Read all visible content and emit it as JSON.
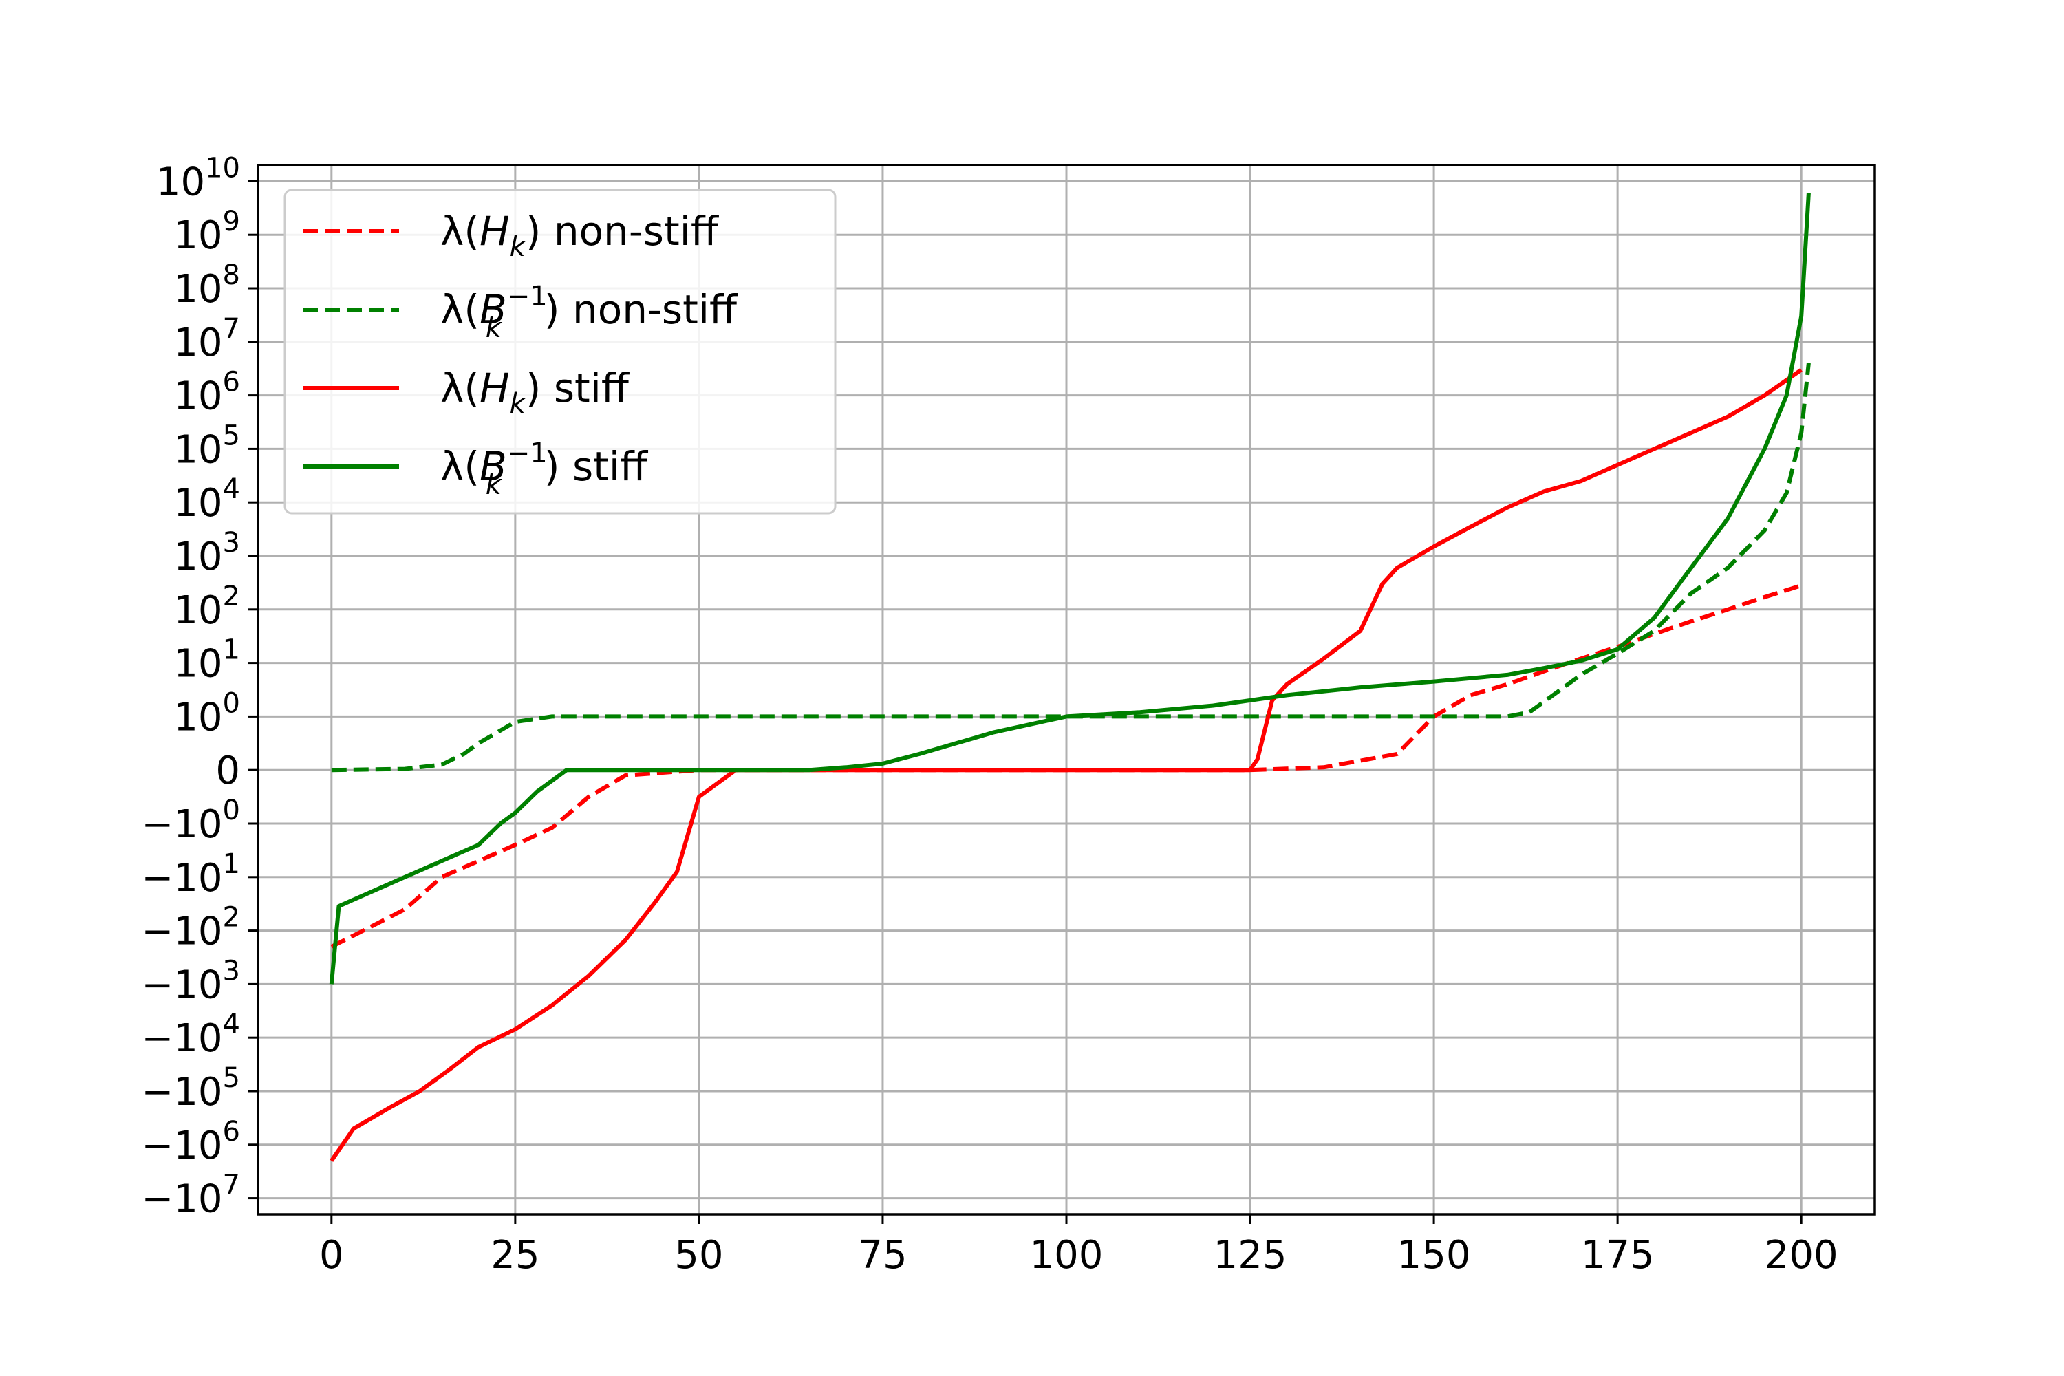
{
  "chart_data": {
    "type": "line",
    "title": "",
    "xlabel": "",
    "ylabel": "",
    "xlim": [
      -10,
      210
    ],
    "yscale": "symlog",
    "ylim": [
      -20000000,
      20000000000
    ],
    "grid": true,
    "legend_position": "top-left",
    "x_ticks": [
      {
        "value": 0,
        "label": "0"
      },
      {
        "value": 25,
        "label": "25"
      },
      {
        "value": 50,
        "label": "50"
      },
      {
        "value": 75,
        "label": "75"
      },
      {
        "value": 100,
        "label": "100"
      },
      {
        "value": 125,
        "label": "125"
      },
      {
        "value": 150,
        "label": "150"
      },
      {
        "value": 175,
        "label": "175"
      },
      {
        "value": 200,
        "label": "200"
      }
    ],
    "y_ticks": [
      {
        "value": 10000000000,
        "base": "10",
        "exp": "10"
      },
      {
        "value": 1000000000,
        "base": "10",
        "exp": "9"
      },
      {
        "value": 100000000,
        "base": "10",
        "exp": "8"
      },
      {
        "value": 10000000,
        "base": "10",
        "exp": "7"
      },
      {
        "value": 1000000,
        "base": "10",
        "exp": "6"
      },
      {
        "value": 100000,
        "base": "10",
        "exp": "5"
      },
      {
        "value": 10000,
        "base": "10",
        "exp": "4"
      },
      {
        "value": 1000,
        "base": "10",
        "exp": "3"
      },
      {
        "value": 100,
        "base": "10",
        "exp": "2"
      },
      {
        "value": 10,
        "base": "10",
        "exp": "1"
      },
      {
        "value": 1,
        "base": "10",
        "exp": "0"
      },
      {
        "value": 0,
        "base": "0",
        "exp": ""
      },
      {
        "value": -1,
        "base": "−10",
        "exp": "0"
      },
      {
        "value": -10,
        "base": "−10",
        "exp": "1"
      },
      {
        "value": -100,
        "base": "−10",
        "exp": "2"
      },
      {
        "value": -1000,
        "base": "−10",
        "exp": "3"
      },
      {
        "value": -10000,
        "base": "−10",
        "exp": "4"
      },
      {
        "value": -100000,
        "base": "−10",
        "exp": "5"
      },
      {
        "value": -1000000,
        "base": "−10",
        "exp": "6"
      },
      {
        "value": -10000000,
        "base": "−10",
        "exp": "7"
      }
    ],
    "series": [
      {
        "name": "λ(H_k) non-stiff",
        "color": "#ff0000",
        "style": "dashed",
        "points": [
          [
            0,
            -200
          ],
          [
            5,
            -90
          ],
          [
            10,
            -40
          ],
          [
            15,
            -10
          ],
          [
            20,
            -5
          ],
          [
            25,
            -2.5
          ],
          [
            30,
            -1.2
          ],
          [
            35,
            -0.5
          ],
          [
            40,
            -0.1
          ],
          [
            50,
            0
          ],
          [
            125,
            0
          ],
          [
            135,
            0.05
          ],
          [
            145,
            0.3
          ],
          [
            150,
            1
          ],
          [
            155,
            2.5
          ],
          [
            160,
            4
          ],
          [
            165,
            7
          ],
          [
            170,
            12
          ],
          [
            175,
            20
          ],
          [
            180,
            35
          ],
          [
            185,
            60
          ],
          [
            190,
            100
          ],
          [
            195,
            170
          ],
          [
            200,
            280
          ]
        ]
      },
      {
        "name": "λ(B_k^{-1}) non-stiff",
        "color": "#008000",
        "style": "dashed",
        "points": [
          [
            0,
            0
          ],
          [
            10,
            0.02
          ],
          [
            15,
            0.1
          ],
          [
            18,
            0.3
          ],
          [
            20,
            0.5
          ],
          [
            25,
            0.9
          ],
          [
            30,
            1
          ],
          [
            160,
            1
          ],
          [
            163,
            1.2
          ],
          [
            167,
            3
          ],
          [
            170,
            6
          ],
          [
            175,
            15
          ],
          [
            180,
            40
          ],
          [
            185,
            200
          ],
          [
            190,
            600
          ],
          [
            195,
            3000
          ],
          [
            198,
            15000
          ],
          [
            200,
            200000
          ],
          [
            201,
            4000000
          ]
        ]
      },
      {
        "name": "λ(H_k) stiff",
        "color": "#ff0000",
        "style": "solid",
        "points": [
          [
            0,
            -2000000
          ],
          [
            3,
            -500000
          ],
          [
            8,
            -200000
          ],
          [
            12,
            -100000
          ],
          [
            16,
            -40000
          ],
          [
            20,
            -15000
          ],
          [
            25,
            -7000
          ],
          [
            30,
            -2500
          ],
          [
            35,
            -700
          ],
          [
            40,
            -150
          ],
          [
            44,
            -30
          ],
          [
            47,
            -8
          ],
          [
            50,
            -0.5
          ],
          [
            55,
            0
          ],
          [
            125,
            0
          ],
          [
            126,
            0.2
          ],
          [
            128,
            2
          ],
          [
            130,
            4
          ],
          [
            135,
            12
          ],
          [
            140,
            40
          ],
          [
            143,
            300
          ],
          [
            145,
            600
          ],
          [
            150,
            1500
          ],
          [
            155,
            3500
          ],
          [
            160,
            8000
          ],
          [
            165,
            16000
          ],
          [
            170,
            25000
          ],
          [
            175,
            50000
          ],
          [
            180,
            100000
          ],
          [
            185,
            200000
          ],
          [
            190,
            400000
          ],
          [
            195,
            1000000
          ],
          [
            200,
            3000000
          ]
        ]
      },
      {
        "name": "λ(B_k^{-1}) stiff",
        "color": "#008000",
        "style": "solid",
        "points": [
          [
            0,
            -1000
          ],
          [
            1,
            -35
          ],
          [
            5,
            -20
          ],
          [
            10,
            -10
          ],
          [
            15,
            -5
          ],
          [
            20,
            -2.5
          ],
          [
            23,
            -1
          ],
          [
            25,
            -0.8
          ],
          [
            28,
            -0.4
          ],
          [
            32,
            0
          ],
          [
            65,
            0
          ],
          [
            70,
            0.05
          ],
          [
            75,
            0.12
          ],
          [
            80,
            0.3
          ],
          [
            90,
            0.7
          ],
          [
            100,
            1
          ],
          [
            110,
            1.2
          ],
          [
            120,
            1.6
          ],
          [
            130,
            2.5
          ],
          [
            140,
            3.5
          ],
          [
            150,
            4.5
          ],
          [
            160,
            6
          ],
          [
            165,
            8
          ],
          [
            170,
            11
          ],
          [
            175,
            18
          ],
          [
            180,
            70
          ],
          [
            185,
            600
          ],
          [
            190,
            5000
          ],
          [
            195,
            100000
          ],
          [
            198,
            1000000
          ],
          [
            200,
            30000000
          ],
          [
            201,
            6000000000
          ]
        ]
      }
    ]
  },
  "legend": {
    "items": [
      {
        "prefix": "λ(",
        "var": "H",
        "sub": "k",
        "sup": "",
        "suffix": ") non-stiff"
      },
      {
        "prefix": "λ(",
        "var": "B",
        "sub": "k",
        "sup": "−1",
        "suffix": ") non-stiff"
      },
      {
        "prefix": "λ(",
        "var": "H",
        "sub": "k",
        "sup": "",
        "suffix": ") stiff"
      },
      {
        "prefix": "λ(",
        "var": "B",
        "sub": "k",
        "sup": "−1",
        "suffix": ") stiff"
      }
    ]
  }
}
